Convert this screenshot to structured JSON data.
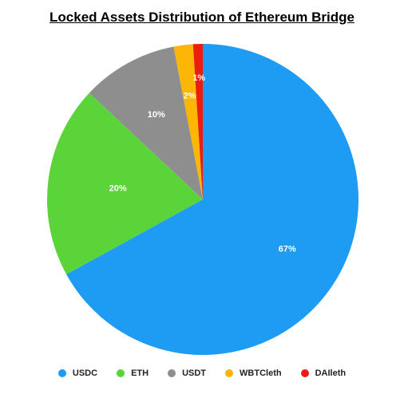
{
  "chart_data": {
    "type": "pie",
    "title": "Locked Assets Distribution of Ethereum Bridge",
    "slices": [
      {
        "label": "USDC",
        "value": 67,
        "display": "67%",
        "color": "#1e9bf2"
      },
      {
        "label": "ETH",
        "value": 20,
        "display": "20%",
        "color": "#5bd43a"
      },
      {
        "label": "USDT",
        "value": 10,
        "display": "10%",
        "color": "#8e8e8e"
      },
      {
        "label": "WBTCleth",
        "value": 2,
        "display": "2%",
        "color": "#fdb506"
      },
      {
        "label": "DAIleth",
        "value": 1,
        "display": "1%",
        "color": "#ea1d10"
      }
    ],
    "legend_position": "bottom"
  }
}
